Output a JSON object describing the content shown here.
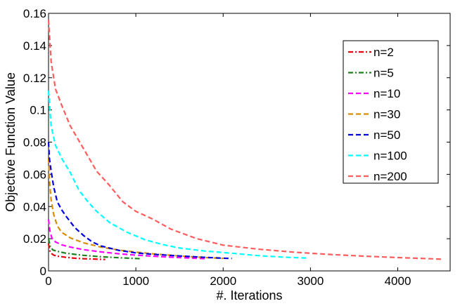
{
  "chart_data": {
    "type": "line",
    "title": "",
    "xlabel": "#. Iterations",
    "ylabel": "Objective Function Value",
    "xlim": [
      0,
      4600
    ],
    "ylim": [
      0,
      0.16
    ],
    "xticks": [
      0,
      1000,
      2000,
      3000,
      4000
    ],
    "xtick_labels": [
      "0",
      "1000",
      "2000",
      "3000",
      "4000"
    ],
    "yticks": [
      0,
      0.02,
      0.04,
      0.06,
      0.08,
      0.1,
      0.12,
      0.14,
      0.16
    ],
    "ytick_labels": [
      "0",
      "0.02",
      "0.04",
      "0.06",
      "0.08",
      "0.1",
      "0.12",
      "0.14",
      "0.16"
    ],
    "grid": false,
    "legend_position": "top-right",
    "series": [
      {
        "name": "n=2",
        "color": "#e8000b",
        "line_style": "dash-dot",
        "x": [
          0,
          10,
          30,
          60,
          100,
          200,
          300,
          400,
          500,
          600,
          650
        ],
        "y": [
          0.017,
          0.013,
          0.011,
          0.0098,
          0.0092,
          0.0084,
          0.0079,
          0.0076,
          0.0074,
          0.0072,
          0.0071
        ]
      },
      {
        "name": "n=5",
        "color": "#1b7f1b",
        "line_style": "dash-dot",
        "x": [
          0,
          20,
          50,
          100,
          200,
          300,
          400,
          600,
          800,
          1000,
          1050
        ],
        "y": [
          0.02,
          0.015,
          0.013,
          0.0122,
          0.011,
          0.0103,
          0.0097,
          0.0088,
          0.0082,
          0.0077,
          0.0076
        ]
      },
      {
        "name": "n=10",
        "color": "#ff00ff",
        "line_style": "dashed",
        "x": [
          0,
          15,
          40,
          80,
          150,
          250,
          400,
          600,
          800,
          1000,
          1300,
          1600,
          1800
        ],
        "y": [
          0.032,
          0.025,
          0.02,
          0.018,
          0.0162,
          0.0148,
          0.0132,
          0.0118,
          0.0107,
          0.0098,
          0.0088,
          0.008,
          0.0076
        ]
      },
      {
        "name": "n=30",
        "color": "#d98c00",
        "line_style": "dashed",
        "x": [
          0,
          10,
          30,
          60,
          100,
          150,
          250,
          400,
          600,
          800,
          1000,
          1200,
          1500,
          1800,
          2000
        ],
        "y": [
          0.07,
          0.057,
          0.044,
          0.035,
          0.028,
          0.024,
          0.0205,
          0.0175,
          0.0148,
          0.013,
          0.0117,
          0.0106,
          0.0093,
          0.0083,
          0.0078
        ]
      },
      {
        "name": "n=50",
        "color": "#0000e0",
        "line_style": "dashed",
        "x": [
          0,
          10,
          30,
          60,
          100,
          150,
          200,
          300,
          400,
          500,
          600,
          800,
          1000,
          1200,
          1500,
          1800,
          2000,
          2100
        ],
        "y": [
          0.08,
          0.07,
          0.062,
          0.052,
          0.043,
          0.038,
          0.034,
          0.027,
          0.022,
          0.018,
          0.0155,
          0.0128,
          0.0112,
          0.0103,
          0.0093,
          0.0084,
          0.0079,
          0.0077
        ]
      },
      {
        "name": "n=100",
        "color": "#00ffff",
        "line_style": "dashed",
        "x": [
          0,
          30,
          80,
          150,
          250,
          350,
          450,
          550,
          700,
          900,
          1100,
          1300,
          1500,
          1800,
          2100,
          2400,
          2700,
          2950
        ],
        "y": [
          0.112,
          0.09,
          0.078,
          0.07,
          0.061,
          0.05,
          0.043,
          0.037,
          0.03,
          0.024,
          0.0195,
          0.0165,
          0.0142,
          0.0123,
          0.011,
          0.0095,
          0.0085,
          0.008
        ]
      },
      {
        "name": "n=200",
        "color": "#ff5c5c",
        "line_style": "dashed",
        "x": [
          0,
          30,
          80,
          150,
          250,
          400,
          550,
          700,
          850,
          1000,
          1200,
          1400,
          1700,
          2000,
          2400,
          2800,
          3200,
          3600,
          4000,
          4300,
          4500
        ],
        "y": [
          0.156,
          0.13,
          0.113,
          0.103,
          0.09,
          0.076,
          0.062,
          0.053,
          0.043,
          0.037,
          0.032,
          0.026,
          0.02,
          0.016,
          0.0135,
          0.0117,
          0.0103,
          0.0092,
          0.0083,
          0.0077,
          0.0073
        ]
      }
    ]
  }
}
